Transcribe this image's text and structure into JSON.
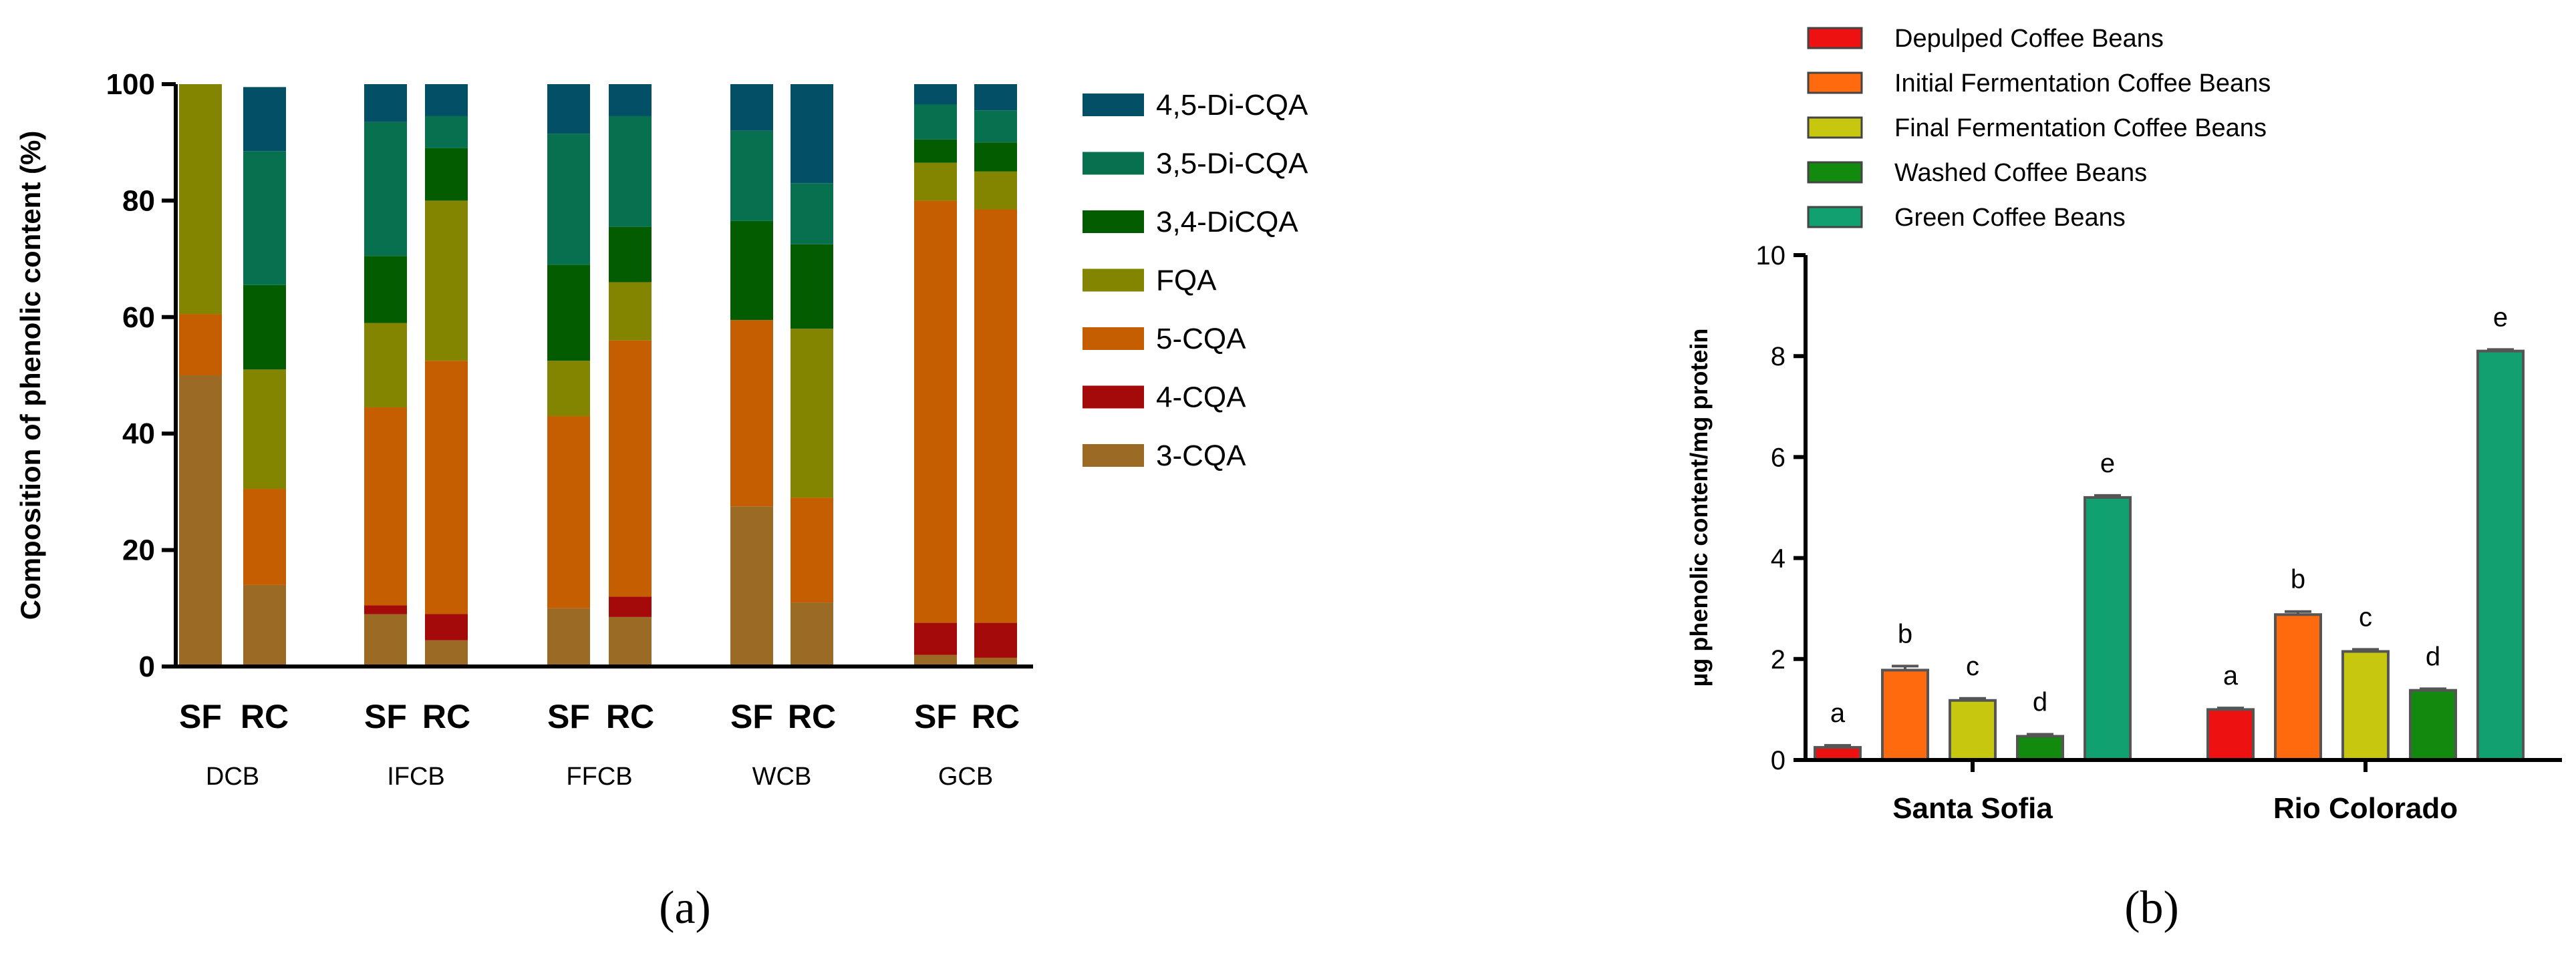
{
  "chart_data": [
    {
      "type": "bar",
      "stacked": true,
      "panel_label": "(a)",
      "ylabel": "Composition of phenolic content (%)",
      "ylim": [
        0,
        100
      ],
      "yticks": [
        0,
        20,
        40,
        60,
        80,
        100
      ],
      "groups": [
        {
          "name": "DCB",
          "bars": [
            "SF",
            "RC"
          ]
        },
        {
          "name": "IFCB",
          "bars": [
            "SF",
            "RC"
          ]
        },
        {
          "name": "FFCB",
          "bars": [
            "SF",
            "RC"
          ]
        },
        {
          "name": "WCB",
          "bars": [
            "SF",
            "RC"
          ]
        },
        {
          "name": "GCB",
          "bars": [
            "SF",
            "RC"
          ]
        }
      ],
      "bar_order": [
        "DCB-SF",
        "DCB-RC",
        "IFCB-SF",
        "IFCB-RC",
        "FFCB-SF",
        "FFCB-RC",
        "WCB-SF",
        "WCB-RC",
        "GCB-SF",
        "GCB-RC"
      ],
      "series": [
        {
          "name": "3-CQA",
          "color": "#9B6A24",
          "values": [
            50,
            14,
            9,
            4.5,
            10,
            8.5,
            27.5,
            11,
            2,
            1.5
          ]
        },
        {
          "name": "4-CQA",
          "color": "#A50A0A",
          "values": [
            0,
            0,
            1.5,
            4.5,
            0,
            3.5,
            0,
            0,
            5.5,
            6
          ]
        },
        {
          "name": "5-CQA",
          "color": "#C45E00",
          "values": [
            10.5,
            16.5,
            34,
            43.5,
            33,
            44,
            32,
            18,
            72.5,
            71
          ]
        },
        {
          "name": "FQA",
          "color": "#838400",
          "values": [
            39.5,
            20.5,
            14.5,
            27.5,
            9.5,
            10,
            0,
            29,
            6.5,
            6.5
          ]
        },
        {
          "name": "3,4-DiCQA",
          "color": "#045C00",
          "values": [
            0,
            14.5,
            11.5,
            9,
            16.5,
            9.5,
            17,
            14.5,
            4,
            5
          ]
        },
        {
          "name": "3,5-Di-CQA",
          "color": "#07704E",
          "values": [
            0,
            23,
            23,
            5.5,
            22.5,
            19,
            15.5,
            10.5,
            6,
            5.5
          ]
        },
        {
          "name": "4,5-Di-CQA",
          "color": "#034F66",
          "values": [
            0,
            11,
            6.5,
            5.5,
            8.5,
            5.5,
            8,
            17,
            3.5,
            4.5
          ]
        }
      ]
    },
    {
      "type": "bar",
      "panel_label": "(b)",
      "ylabel": "µg phenolic content/mg protein",
      "ylim": [
        0,
        10
      ],
      "yticks": [
        0,
        2,
        4,
        6,
        8,
        10
      ],
      "categories": [
        "Santa Sofia",
        "Rio Colorado"
      ],
      "series": [
        {
          "name": "Depulped Coffee Beans",
          "color": "#EE1111",
          "values": [
            0.25,
            1.0
          ],
          "errors": [
            0.04,
            0.03
          ],
          "letters": [
            "a",
            "a"
          ]
        },
        {
          "name": "Initial Fermentation Coffee Beans",
          "color": "#FF6A0F",
          "values": [
            1.78,
            2.88
          ],
          "errors": [
            0.08,
            0.06
          ],
          "letters": [
            "b",
            "b"
          ]
        },
        {
          "name": "Final Fermentation Coffee Beans",
          "color": "#C6C70E",
          "values": [
            1.18,
            2.15
          ],
          "errors": [
            0.04,
            0.04
          ],
          "letters": [
            "c",
            "c"
          ]
        },
        {
          "name": "Washed Coffee Beans",
          "color": "#118A0E",
          "values": [
            0.47,
            1.38
          ],
          "errors": [
            0.04,
            0.03
          ],
          "letters": [
            "d",
            "d"
          ]
        },
        {
          "name": "Green Coffee Beans",
          "color": "#11A070",
          "values": [
            5.2,
            8.1
          ],
          "errors": [
            0.04,
            0.03
          ],
          "letters": [
            "e",
            "e"
          ]
        }
      ]
    }
  ]
}
